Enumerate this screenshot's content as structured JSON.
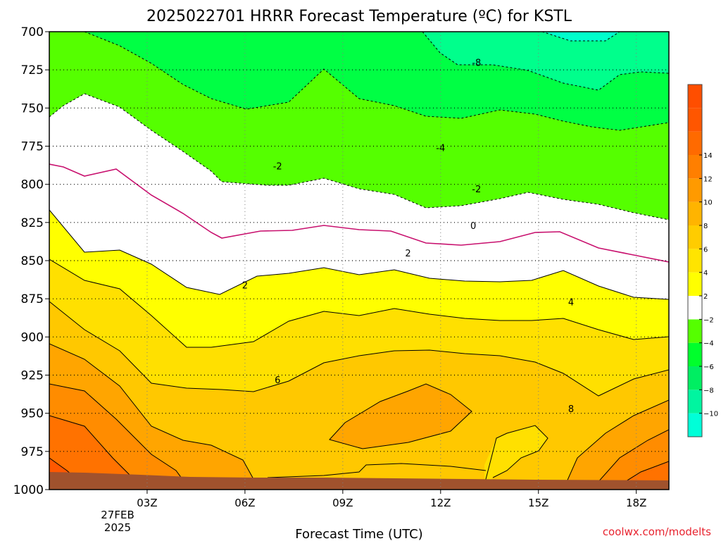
{
  "chart_data": {
    "type": "heatmap",
    "title": "2025022701 HRRR Forecast Temperature (ºC) for KSTL",
    "xlabel": "Forecast Time (UTC)",
    "ylabel": "",
    "credit": "coolwx.com/modelts",
    "x_ticks": [
      "03Z",
      "06Z",
      "09Z",
      "12Z",
      "15Z",
      "18Z"
    ],
    "x_date_labels": [
      "27FEB",
      "2025"
    ],
    "y_ticks": [
      "700",
      "725",
      "750",
      "775",
      "800",
      "825",
      "850",
      "875",
      "900",
      "925",
      "950",
      "975",
      "1000"
    ],
    "y_range_hPa": [
      1000,
      700
    ],
    "grid": true,
    "isotherm_labels": [
      {
        "text": "-8",
        "hour": 13.1,
        "p": 720
      },
      {
        "text": "-4",
        "hour": 12.0,
        "p": 776
      },
      {
        "text": "-2",
        "hour": 7.0,
        "p": 788
      },
      {
        "text": "-2",
        "hour": 13.1,
        "p": 803
      },
      {
        "text": "0",
        "hour": 13.0,
        "p": 827
      },
      {
        "text": "2",
        "hour": 11.0,
        "p": 845
      },
      {
        "text": "2",
        "hour": 6.0,
        "p": 866
      },
      {
        "text": "4",
        "hour": 16.0,
        "p": 877
      },
      {
        "text": "6",
        "hour": 7.0,
        "p": 928
      },
      {
        "text": "8",
        "hour": 16.0,
        "p": 947
      }
    ],
    "colorbar": {
      "colors": [
        "#00ffd8",
        "#00f5a0",
        "#00ee62",
        "#00ff2c",
        "#55ff00",
        "#ffffff",
        "#ffff00",
        "#ffe400",
        "#ffcc00",
        "#ffb400",
        "#ff9a00",
        "#ff7f00",
        "#ff6a00",
        "#ff5600",
        "#ff4e00"
      ],
      "tick_labels": [
        "14",
        "12",
        "10",
        "8",
        "6",
        "4",
        "2",
        "−2",
        "−4",
        "−6",
        "−8",
        "−10"
      ]
    },
    "ground_color": "#a0522d"
  }
}
